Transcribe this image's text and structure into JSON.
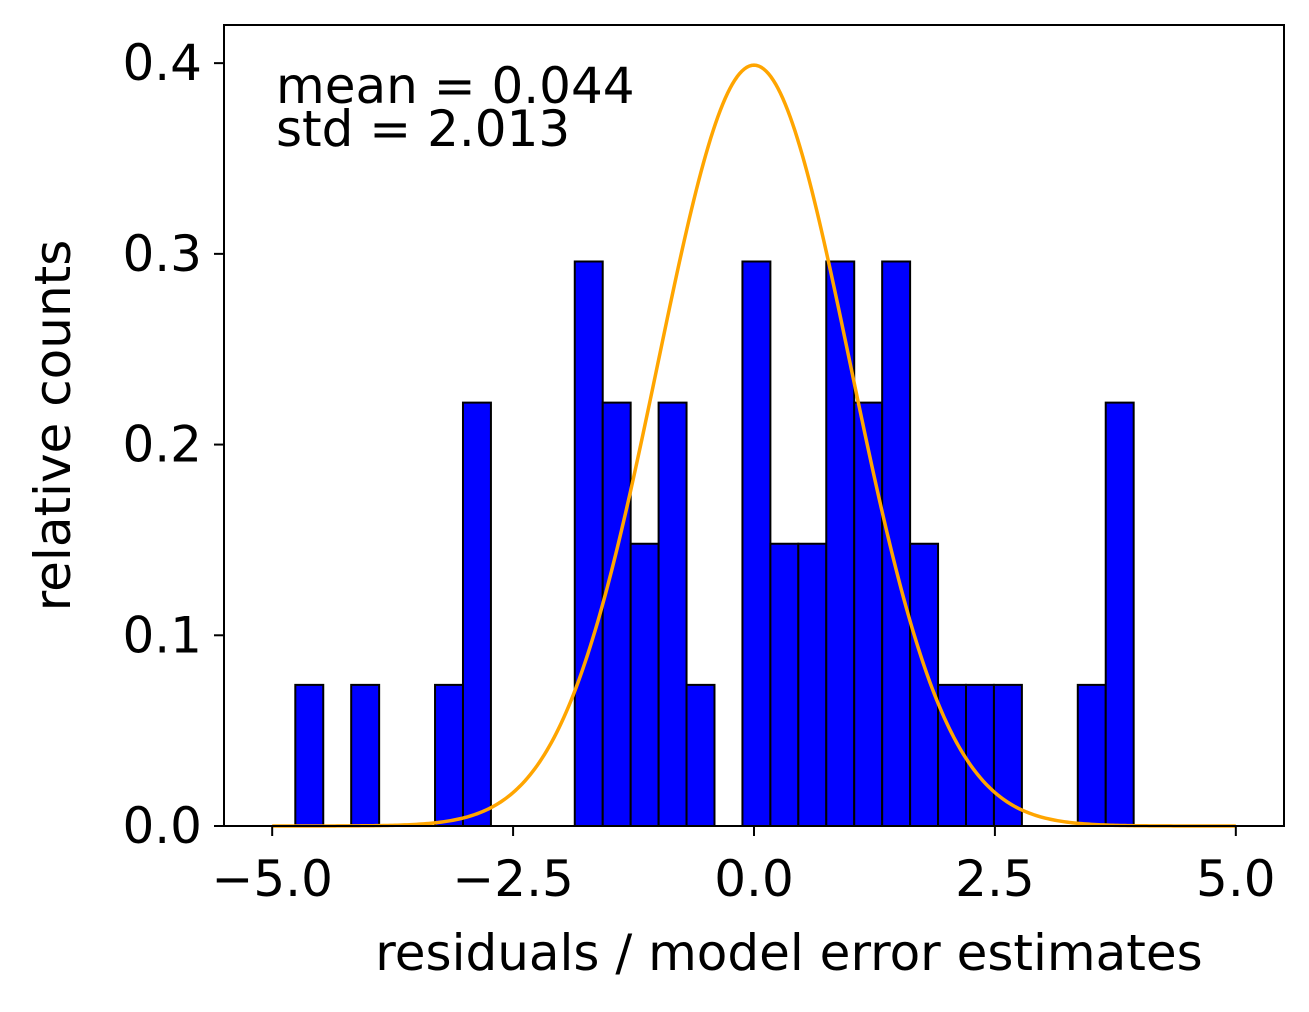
{
  "chart_data": {
    "type": "bar",
    "title": "",
    "xlabel": "residuals / model error estimates",
    "ylabel": "relative counts",
    "xlim": [
      -5.5,
      5.5
    ],
    "ylim": [
      0.0,
      0.42
    ],
    "grid": false,
    "legend": "none",
    "xticks": [
      -5.0,
      -2.5,
      0.0,
      2.5,
      5.0
    ],
    "xtick_labels": [
      "−5.0",
      "−2.5",
      "0.0",
      "2.5",
      "5.0"
    ],
    "yticks": [
      0.0,
      0.1,
      0.2,
      0.3,
      0.4
    ],
    "ytick_labels": [
      "0.0",
      "0.1",
      "0.2",
      "0.3",
      "0.4"
    ],
    "bins": {
      "left_edges": [
        -4.76,
        -4.18,
        -3.31,
        -3.02,
        -1.86,
        -1.57,
        -1.28,
        -0.99,
        -0.7,
        -0.12,
        0.17,
        0.46,
        0.75,
        1.04,
        1.33,
        1.62,
        1.91,
        2.2,
        2.49,
        3.36,
        3.65
      ],
      "width": 0.29,
      "values": [
        0.074,
        0.074,
        0.074,
        0.222,
        0.296,
        0.222,
        0.148,
        0.222,
        0.074,
        0.296,
        0.148,
        0.148,
        0.296,
        0.222,
        0.296,
        0.148,
        0.074,
        0.074,
        0.074,
        0.074,
        0.222
      ],
      "color": "#0000ff",
      "edge_color": "#000000"
    },
    "curve": {
      "type": "normal-pdf",
      "mean": 0.0,
      "std": 1.0,
      "x_range": [
        -5.0,
        5.0
      ],
      "color": "#ffa500"
    },
    "annotations": [
      {
        "text": "mean = 0.044"
      },
      {
        "text": "std = 2.013"
      }
    ]
  }
}
